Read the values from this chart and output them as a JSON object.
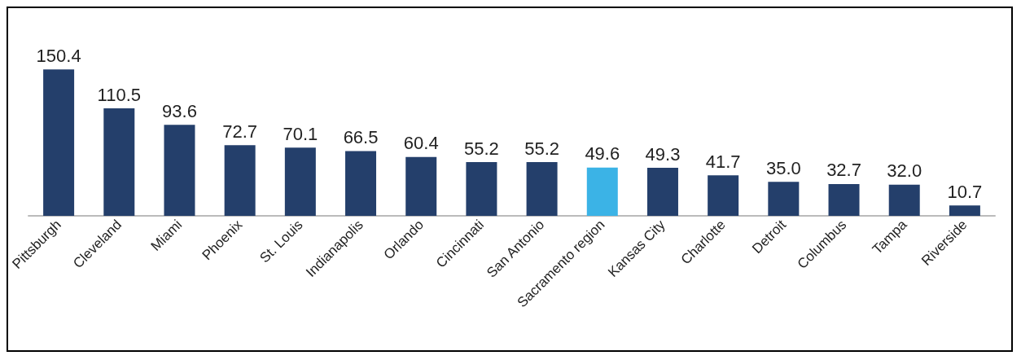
{
  "chart_data": {
    "type": "bar",
    "categories": [
      "Pittsburgh",
      "Cleveland",
      "Miami",
      "Phoenix",
      "St. Louis",
      "Indianapolis",
      "Orlando",
      "Cincinnati",
      "San Antonio",
      "Sacramento region",
      "Kansas City",
      "Charlotte",
      "Detroit",
      "Columbus",
      "Tampa",
      "Riverside"
    ],
    "values": [
      150.4,
      110.5,
      93.6,
      72.7,
      70.1,
      66.5,
      60.4,
      55.2,
      55.2,
      49.6,
      49.3,
      41.7,
      35.0,
      32.7,
      32.0,
      10.7
    ],
    "colors": [
      "#243f6b",
      "#243f6b",
      "#243f6b",
      "#243f6b",
      "#243f6b",
      "#243f6b",
      "#243f6b",
      "#243f6b",
      "#243f6b",
      "#3bb3e6",
      "#243f6b",
      "#243f6b",
      "#243f6b",
      "#243f6b",
      "#243f6b",
      "#243f6b"
    ],
    "value_labels": [
      "150.4",
      "110.5",
      "93.6",
      "72.7",
      "70.1",
      "66.5",
      "60.4",
      "55.2",
      "55.2",
      "49.6",
      "49.3",
      "41.7",
      "35.0",
      "32.7",
      "32.0",
      "10.7"
    ]
  }
}
